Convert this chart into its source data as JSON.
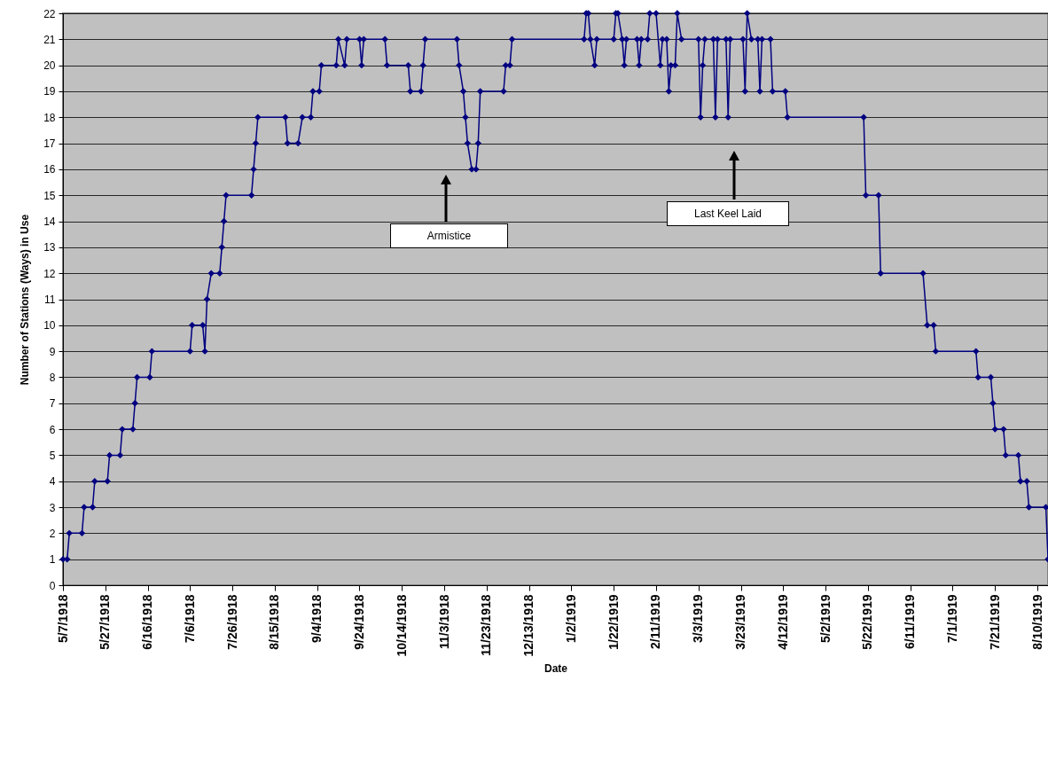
{
  "chart_data": {
    "type": "line",
    "xlabel": "Date",
    "ylabel": "Number of Stations (Ways) in Use",
    "x": [
      "1918-05-07",
      "1918-05-09",
      "1918-05-10",
      "1918-05-16",
      "1918-05-17",
      "1918-05-21",
      "1918-05-22",
      "1918-05-28",
      "1918-05-29",
      "1918-06-03",
      "1918-06-04",
      "1918-06-09",
      "1918-06-10",
      "1918-06-11",
      "1918-06-17",
      "1918-06-18",
      "1918-07-06",
      "1918-07-07",
      "1918-07-12",
      "1918-07-13",
      "1918-07-14",
      "1918-07-16",
      "1918-07-20",
      "1918-07-21",
      "1918-07-22",
      "1918-07-23",
      "1918-08-04",
      "1918-08-05",
      "1918-08-06",
      "1918-08-07",
      "1918-08-20",
      "1918-08-21",
      "1918-08-26",
      "1918-08-28",
      "1918-09-01",
      "1918-09-02",
      "1918-09-05",
      "1918-09-06",
      "1918-09-13",
      "1918-09-14",
      "1918-09-17",
      "1918-09-18",
      "1918-09-24",
      "1918-09-25",
      "1918-09-26",
      "1918-10-06",
      "1918-10-07",
      "1918-10-17",
      "1918-10-18",
      "1918-10-23",
      "1918-10-24",
      "1918-10-25",
      "1918-11-09",
      "1918-11-10",
      "1918-11-12",
      "1918-11-13",
      "1918-11-14",
      "1918-11-16",
      "1918-11-18",
      "1918-11-19",
      "1918-11-20",
      "1918-12-01",
      "1918-12-02",
      "1918-12-04",
      "1918-12-05",
      "1919-01-08",
      "1919-01-09",
      "1919-01-10",
      "1919-01-11",
      "1919-01-13",
      "1919-01-14",
      "1919-01-22",
      "1919-01-23",
      "1919-01-24",
      "1919-01-26",
      "1919-01-27",
      "1919-01-28",
      "1919-02-02",
      "1919-02-03",
      "1919-02-04",
      "1919-02-07",
      "1919-02-08",
      "1919-02-11",
      "1919-02-13",
      "1919-02-14",
      "1919-02-16",
      "1919-02-17",
      "1919-02-18",
      "1919-02-20",
      "1919-02-21",
      "1919-02-23",
      "1919-03-03",
      "1919-03-04",
      "1919-03-05",
      "1919-03-06",
      "1919-03-10",
      "1919-03-11",
      "1919-03-12",
      "1919-03-16",
      "1919-03-17",
      "1919-03-18",
      "1919-03-24",
      "1919-03-25",
      "1919-03-26",
      "1919-03-28",
      "1919-03-31",
      "1919-04-01",
      "1919-04-02",
      "1919-04-06",
      "1919-04-07",
      "1919-04-13",
      "1919-04-14",
      "1919-05-20",
      "1919-05-21",
      "1919-05-27",
      "1919-05-28",
      "1919-06-17",
      "1919-06-19",
      "1919-06-22",
      "1919-06-23",
      "1919-07-12",
      "1919-07-13",
      "1919-07-19",
      "1919-07-20",
      "1919-07-21",
      "1919-07-25",
      "1919-07-26",
      "1919-08-01",
      "1919-08-02",
      "1919-08-05",
      "1919-08-06",
      "1919-08-14",
      "1919-08-15"
    ],
    "series": [
      {
        "color": "#000080",
        "values": [
          1,
          1,
          2,
          2,
          3,
          3,
          4,
          4,
          5,
          5,
          6,
          6,
          7,
          8,
          8,
          9,
          9,
          10,
          10,
          9,
          11,
          12,
          12,
          13,
          14,
          15,
          15,
          16,
          17,
          18,
          18,
          17,
          17,
          18,
          18,
          19,
          19,
          20,
          20,
          21,
          20,
          21,
          21,
          20,
          21,
          21,
          20,
          20,
          19,
          19,
          20,
          21,
          21,
          20,
          19,
          18,
          17,
          16,
          16,
          17,
          19,
          19,
          20,
          20,
          21,
          21,
          22,
          22,
          21,
          20,
          21,
          21,
          22,
          22,
          21,
          20,
          21,
          21,
          20,
          21,
          21,
          22,
          22,
          20,
          21,
          21,
          19,
          20,
          20,
          22,
          21,
          21,
          18,
          20,
          21,
          21,
          18,
          21,
          21,
          18,
          21,
          21,
          19,
          22,
          21,
          21,
          19,
          21,
          21,
          19,
          19,
          18,
          18,
          15,
          15,
          12,
          12,
          10,
          10,
          9,
          9,
          8,
          8,
          7,
          6,
          6,
          5,
          5,
          4,
          4,
          3,
          3,
          1
        ]
      }
    ],
    "xlim": [
      "1918-05-07",
      "1919-08-15"
    ],
    "xticks": [
      {
        "value": "1918-05-07",
        "label": "5/7/1918"
      },
      {
        "value": "1918-05-27",
        "label": "5/27/1918"
      },
      {
        "value": "1918-06-16",
        "label": "6/16/1918"
      },
      {
        "value": "1918-07-06",
        "label": "7/6/1918"
      },
      {
        "value": "1918-07-26",
        "label": "7/26/1918"
      },
      {
        "value": "1918-08-15",
        "label": "8/15/1918"
      },
      {
        "value": "1918-09-04",
        "label": "9/4/1918"
      },
      {
        "value": "1918-09-24",
        "label": "9/24/1918"
      },
      {
        "value": "1918-10-14",
        "label": "10/14/1918"
      },
      {
        "value": "1918-11-03",
        "label": "11/3/1918"
      },
      {
        "value": "1918-11-23",
        "label": "11/23/1918"
      },
      {
        "value": "1918-12-13",
        "label": "12/13/1918"
      },
      {
        "value": "1919-01-02",
        "label": "1/2/1919"
      },
      {
        "value": "1919-01-22",
        "label": "1/22/1919"
      },
      {
        "value": "1919-02-11",
        "label": "2/11/1919"
      },
      {
        "value": "1919-03-03",
        "label": "3/3/1919"
      },
      {
        "value": "1919-03-23",
        "label": "3/23/1919"
      },
      {
        "value": "1919-04-12",
        "label": "4/12/1919"
      },
      {
        "value": "1919-05-02",
        "label": "5/2/1919"
      },
      {
        "value": "1919-05-22",
        "label": "5/22/1919"
      },
      {
        "value": "1919-06-11",
        "label": "6/11/1919"
      },
      {
        "value": "1919-07-01",
        "label": "7/1/1919"
      },
      {
        "value": "1919-07-21",
        "label": "7/21/1919"
      },
      {
        "value": "1919-08-10",
        "label": "8/10/1919"
      }
    ],
    "ylim": [
      0,
      22
    ],
    "yticks": [
      0,
      1,
      2,
      3,
      4,
      5,
      6,
      7,
      8,
      9,
      10,
      11,
      12,
      13,
      14,
      15,
      16,
      17,
      18,
      19,
      20,
      21,
      22
    ],
    "grid": "y",
    "marker": "diamond",
    "line_style": "solid",
    "annotations": [
      "Armistice",
      "Last Keel Laid"
    ]
  }
}
